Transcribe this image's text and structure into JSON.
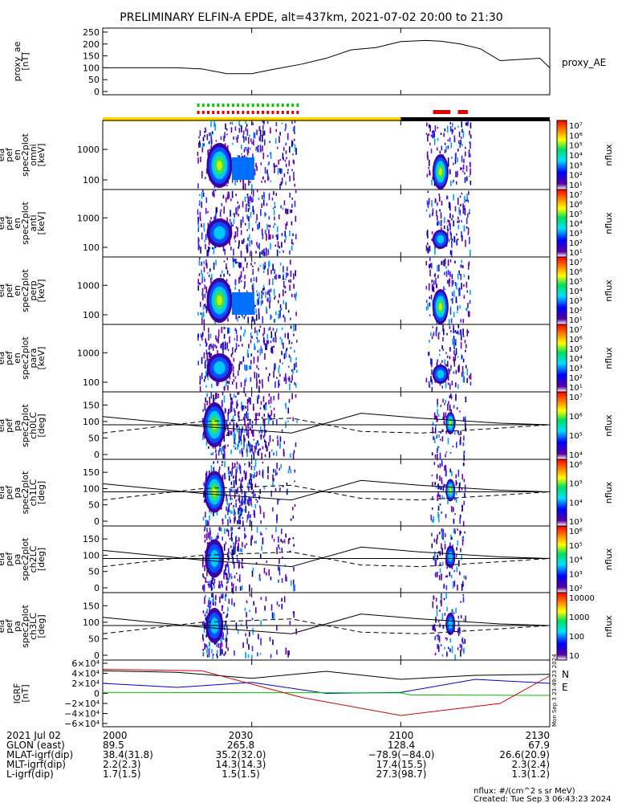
{
  "header": {
    "title": "PRELIMINARY ELFIN-A EPDE, alt=437km, 2021-07-02 20:00 to 21:30"
  },
  "colors": {
    "state_yellow": "#ffd800",
    "state_black": "#000000",
    "tick_green": "#00cc00",
    "tick_red": "#e00000",
    "bx": "#0000d0",
    "by": "#00c000",
    "bz": "#d00000",
    "btot": "#000000"
  },
  "panels": {
    "proxy_ae": {
      "ylabel": [
        "proxy_ae",
        "[nT]"
      ],
      "yticks": [
        "250",
        "200",
        "150",
        "100",
        "50",
        "0"
      ],
      "legend": "proxy_AE"
    },
    "en1": {
      "ylabel": [
        "ela",
        "pef",
        "en",
        "spec2plot",
        "omni",
        "[keV]"
      ],
      "yticks": [
        "1000",
        "100"
      ]
    },
    "en2": {
      "ylabel": [
        "ela",
        "pef",
        "en",
        "spec2plot",
        "anti",
        "[keV]"
      ],
      "yticks": [
        "1000",
        "100"
      ]
    },
    "en3": {
      "ylabel": [
        "ela",
        "pef",
        "en",
        "spec2plot",
        "perp",
        "[keV]"
      ],
      "yticks": [
        "1000",
        "100"
      ]
    },
    "en4": {
      "ylabel": [
        "ela",
        "pef",
        "en",
        "spec2plot",
        "para",
        "[keV]"
      ],
      "yticks": [
        "1000",
        "100"
      ]
    },
    "pa0": {
      "ylabel": [
        "ela",
        "pef",
        "pa",
        "spec2plot",
        "ch0LC",
        "[deg]"
      ],
      "yticks": [
        "150",
        "100",
        "50",
        "0"
      ]
    },
    "pa1": {
      "ylabel": [
        "ela",
        "pef",
        "pa",
        "spec2plot",
        "ch1LC",
        "[deg]"
      ],
      "yticks": [
        "150",
        "100",
        "50",
        "0"
      ]
    },
    "pa2": {
      "ylabel": [
        "ela",
        "pef",
        "pa",
        "spec2plot",
        "ch2LC",
        "[deg]"
      ],
      "yticks": [
        "150",
        "100",
        "50",
        "0"
      ]
    },
    "pa3": {
      "ylabel": [
        "ela",
        "pef",
        "pa",
        "spec2plot",
        "ch3LC",
        "[deg]"
      ],
      "yticks": [
        "150",
        "100",
        "50",
        "0"
      ]
    },
    "igrf": {
      "ylabel": [
        "IGRF",
        "[nT]"
      ],
      "yticks": [
        "6×10⁴",
        "4×10⁴",
        "2×10⁴",
        "0",
        "−2×10⁴",
        "−4×10⁴",
        "−6×10⁴"
      ],
      "legend": [
        "N",
        "E"
      ],
      "stamp": "Mon Sep  3 23:49:23 2024"
    }
  },
  "colorbars": {
    "en1": {
      "label": "nflux",
      "ticks": [
        "10⁷",
        "10⁶",
        "10⁵",
        "10⁴",
        "10³",
        "10²",
        "10¹"
      ]
    },
    "en2": {
      "label": "nflux",
      "ticks": [
        "10⁷",
        "10⁶",
        "10⁵",
        "10⁴",
        "10³",
        "10²",
        "10¹"
      ]
    },
    "en3": {
      "label": "nflux",
      "ticks": [
        "10⁷",
        "10⁶",
        "10⁵",
        "10⁴",
        "10³",
        "10²",
        "10¹"
      ]
    },
    "en4": {
      "label": "nflux",
      "ticks": [
        "10⁷",
        "10⁶",
        "10⁵",
        "10⁴",
        "10³",
        "10²",
        "10¹"
      ]
    },
    "pa0": {
      "label": "nflux",
      "ticks": [
        "10⁷",
        "10⁶",
        "10⁵",
        "10⁴"
      ]
    },
    "pa1": {
      "label": "nflux",
      "ticks": [
        "10⁶",
        "10⁵",
        "10⁴",
        "10³"
      ]
    },
    "pa2": {
      "label": "nflux",
      "ticks": [
        "10⁶",
        "10⁵",
        "10⁴",
        "10³",
        "10²"
      ]
    },
    "pa3": {
      "label": "nflux",
      "ticks": [
        "10000",
        "1000",
        "100",
        "10"
      ]
    }
  },
  "ephemeris": {
    "rows": [
      {
        "label": "2021 Jul 02",
        "values": [
          "2000",
          "2030",
          "2100",
          "2130"
        ]
      },
      {
        "label": "GLON (east)",
        "values": [
          "89.5",
          "265.8",
          "128.4",
          "67.9"
        ]
      },
      {
        "label": "MLAT-igrf(dip)",
        "values": [
          "38.4(31.8)",
          "35.2(32.0)",
          "−78.9(−84.0)",
          "26.6(20.9)"
        ]
      },
      {
        "label": "MLT-igrf(dip)",
        "values": [
          "2.2(2.3)",
          "14.3(14.3)",
          "17.4(15.5)",
          "2.3(2.4)"
        ]
      },
      {
        "label": "L-igrf(dip)",
        "values": [
          "1.7(1.5)",
          "1.5(1.5)",
          "27.3(98.7)",
          "1.3(1.2)"
        ]
      }
    ]
  },
  "footer": {
    "units": "nflux: #/(cm^2 s sr MeV)",
    "created": "Created: Tue Sep  3 06:43:23 2024"
  },
  "chart_data": [
    {
      "type": "line",
      "id": "proxy_ae",
      "x_unit": "minutes after 20:00 UT",
      "xlim": [
        0,
        90
      ],
      "ylim": [
        0,
        260
      ],
      "x": [
        0,
        5,
        10,
        15,
        20,
        25,
        30,
        34,
        40,
        45,
        50,
        55,
        60,
        65,
        68,
        72,
        76,
        80,
        84,
        88,
        90
      ],
      "y": [
        100,
        100,
        100,
        100,
        95,
        75,
        75,
        92,
        115,
        140,
        175,
        185,
        210,
        215,
        212,
        200,
        180,
        130,
        135,
        140,
        100
      ]
    },
    {
      "type": "table",
      "id": "state_bar",
      "segments": [
        {
          "x0": 0,
          "x1": 60,
          "state": "yellow"
        },
        {
          "x0": 60,
          "x1": 90,
          "state": "black"
        }
      ],
      "green_ticks": {
        "x0": 19,
        "x1": 39
      },
      "red_ticks": [
        {
          "x0": 19,
          "x1": 39
        },
        {
          "x0": 66.5,
          "x1": 70
        },
        {
          "x0": 71.5,
          "x1": 73.5
        }
      ]
    },
    {
      "type": "heatmap",
      "id": "energy_spectrograms",
      "ylim_keV": [
        60,
        7000
      ],
      "yscale": "log",
      "active_intervals": [
        {
          "x0": 19,
          "x1": 39
        },
        {
          "x0": 65,
          "x1": 74
        }
      ],
      "peak_intervals": [
        {
          "x0": 21,
          "x1": 27
        },
        {
          "x0": 66,
          "x1": 70
        }
      ]
    },
    {
      "type": "line",
      "id": "loss_cone",
      "xlim": [
        0,
        90
      ],
      "ylim": [
        0,
        180
      ],
      "solid": {
        "x": [
          0,
          20,
          38,
          52,
          64,
          80,
          90
        ],
        "y": [
          115,
          85,
          65,
          125,
          110,
          95,
          90
        ]
      },
      "dashed": {
        "x": [
          0,
          20,
          38,
          52,
          64,
          80,
          90
        ],
        "y": [
          65,
          100,
          110,
          70,
          65,
          80,
          90
        ]
      }
    },
    {
      "type": "line",
      "id": "igrf_field",
      "xlim": [
        0,
        90
      ],
      "ylim": [
        -60000,
        60000
      ],
      "series": [
        {
          "color": "#000000",
          "x": [
            0,
            15,
            30,
            45,
            60,
            75,
            90
          ],
          "y": [
            45000,
            42000,
            30000,
            44000,
            28000,
            36000,
            38000
          ]
        },
        {
          "color": "#0000d0",
          "x": [
            0,
            15,
            30,
            45,
            60,
            75,
            90
          ],
          "y": [
            20000,
            12000,
            22000,
            0,
            2000,
            28000,
            20000
          ]
        },
        {
          "color": "#00c000",
          "x": [
            0,
            30,
            60,
            62,
            90
          ],
          "y": [
            2000,
            1500,
            1000,
            -3000,
            -4000
          ]
        },
        {
          "color": "#d00000",
          "x": [
            0,
            20,
            40,
            60,
            80,
            90
          ],
          "y": [
            48000,
            45000,
            -8000,
            -44000,
            -20000,
            35000
          ]
        }
      ]
    }
  ]
}
